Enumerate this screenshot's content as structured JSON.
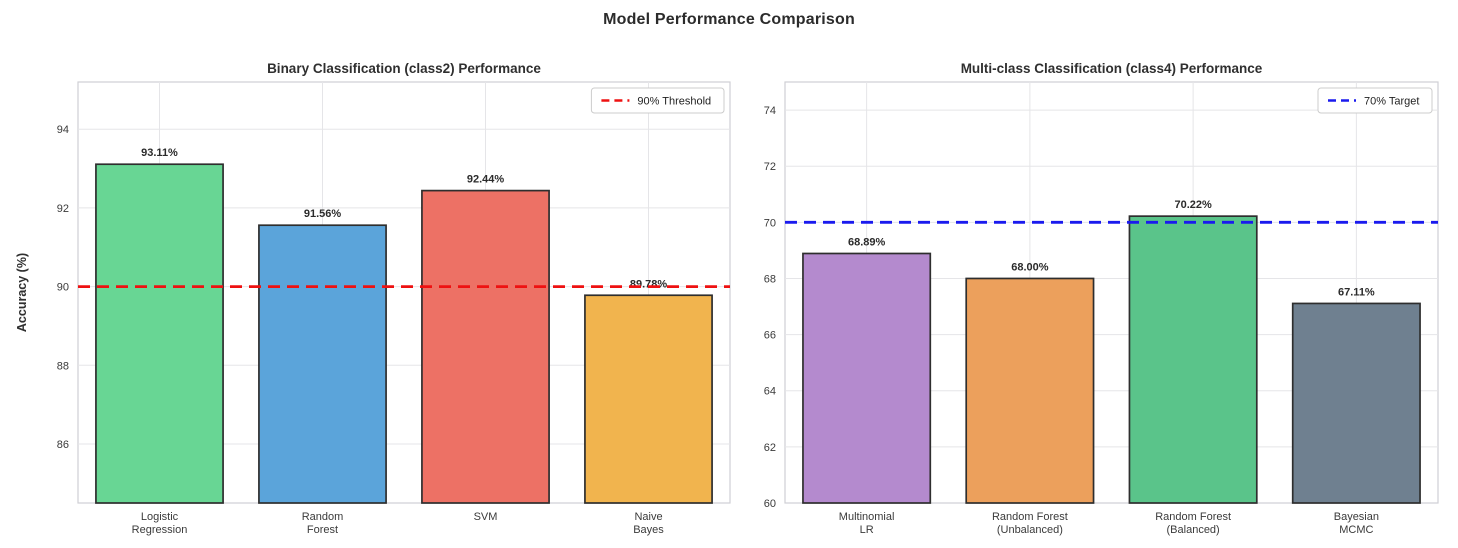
{
  "figure": {
    "title": "Model Performance Comparison"
  },
  "chart_data": [
    {
      "type": "bar",
      "title": "Binary Classification (class2) Performance",
      "ylabel": "Accuracy (%)",
      "xlabel": "",
      "categories": [
        "Logistic\nRegression",
        "Random\nForest",
        "SVM",
        "Naive\nBayes"
      ],
      "values": [
        93.11,
        91.56,
        92.44,
        89.78
      ],
      "bar_labels": [
        "93.11%",
        "91.56%",
        "92.44%",
        "89.78%"
      ],
      "bar_colors": [
        "#68d694",
        "#5ba4da",
        "#ed7165",
        "#f1b44e"
      ],
      "bar_edge_color": "#2e2e2e",
      "ylim": [
        84.5,
        95.2
      ],
      "yticks": [
        86,
        88,
        90,
        92,
        94
      ],
      "grid": true,
      "legend_position": "upper right",
      "reference_line": {
        "value": 90,
        "label": "90% Threshold",
        "color": "#ee1111",
        "style": "dashed"
      }
    },
    {
      "type": "bar",
      "title": "Multi-class Classification (class4) Performance",
      "ylabel": "Accuracy (%)",
      "xlabel": "",
      "categories": [
        "Multinomial\nLR",
        "Random Forest\n(Unbalanced)",
        "Random Forest\n(Balanced)",
        "Bayesian\nMCMC"
      ],
      "values": [
        68.89,
        68.0,
        70.22,
        67.11
      ],
      "bar_labels": [
        "68.89%",
        "68.00%",
        "70.22%",
        "67.11%"
      ],
      "bar_colors": [
        "#b48ace",
        "#eca05c",
        "#5ac48a",
        "#6f8090"
      ],
      "bar_edge_color": "#2e2e2e",
      "ylim": [
        60,
        75
      ],
      "yticks": [
        60,
        62,
        64,
        66,
        68,
        70,
        72,
        74
      ],
      "grid": true,
      "legend_position": "upper right",
      "reference_line": {
        "value": 70,
        "label": "70% Target",
        "color": "#1a1aee",
        "style": "dashed"
      }
    }
  ],
  "style": {
    "grid_color": "#e5e5e8",
    "plot_border_color": "#cfcfd4",
    "tick_label_color": "#3a3a3a",
    "bar_label_color": "#2b2b2b",
    "legend_border_color": "#cccccc",
    "background": "#ffffff"
  }
}
